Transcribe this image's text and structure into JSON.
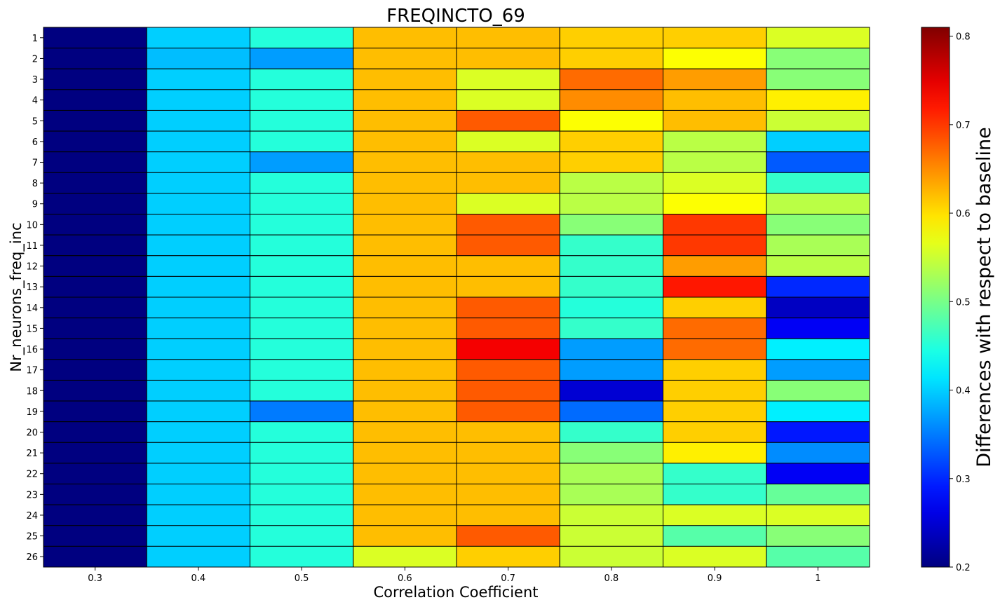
{
  "chart_data": {
    "type": "heatmap",
    "title": "FREQINCTO_69",
    "xlabel": "Correlation Coefficient",
    "ylabel": "Nr_neurons_freq_inc",
    "colorbar_label": "Differences with respect to baseline",
    "colormap": "jet",
    "vmin": 0.2,
    "vmax": 0.81,
    "colorbar_ticks": [
      "0.2",
      "0.3",
      "0.4",
      "0.5",
      "0.6",
      "0.7",
      "0.8"
    ],
    "x_categories": [
      "0.3",
      "0.4",
      "0.5",
      "0.6",
      "0.7",
      "0.8",
      "0.9",
      "1"
    ],
    "y_categories": [
      "1",
      "2",
      "3",
      "4",
      "5",
      "6",
      "7",
      "8",
      "9",
      "10",
      "11",
      "12",
      "13",
      "14",
      "15",
      "16",
      "17",
      "18",
      "19",
      "20",
      "21",
      "22",
      "23",
      "24",
      "25",
      "26"
    ],
    "values": [
      [
        0.2,
        0.4,
        0.45,
        0.62,
        0.62,
        0.61,
        0.61,
        0.56
      ],
      [
        0.2,
        0.39,
        0.37,
        0.62,
        0.62,
        0.61,
        0.58,
        0.51
      ],
      [
        0.2,
        0.4,
        0.45,
        0.62,
        0.56,
        0.67,
        0.64,
        0.51
      ],
      [
        0.2,
        0.4,
        0.45,
        0.62,
        0.56,
        0.65,
        0.62,
        0.59
      ],
      [
        0.2,
        0.4,
        0.45,
        0.62,
        0.68,
        0.58,
        0.62,
        0.55
      ],
      [
        0.2,
        0.4,
        0.45,
        0.62,
        0.56,
        0.61,
        0.54,
        0.4
      ],
      [
        0.2,
        0.4,
        0.37,
        0.62,
        0.62,
        0.61,
        0.54,
        0.33
      ],
      [
        0.2,
        0.4,
        0.45,
        0.62,
        0.62,
        0.54,
        0.56,
        0.46
      ],
      [
        0.2,
        0.4,
        0.45,
        0.62,
        0.56,
        0.54,
        0.58,
        0.54
      ],
      [
        0.2,
        0.4,
        0.45,
        0.62,
        0.68,
        0.51,
        0.7,
        0.51
      ],
      [
        0.2,
        0.4,
        0.45,
        0.62,
        0.68,
        0.46,
        0.7,
        0.53
      ],
      [
        0.2,
        0.4,
        0.45,
        0.62,
        0.62,
        0.46,
        0.64,
        0.54
      ],
      [
        0.2,
        0.4,
        0.45,
        0.62,
        0.62,
        0.46,
        0.72,
        0.3
      ],
      [
        0.2,
        0.4,
        0.45,
        0.62,
        0.68,
        0.45,
        0.61,
        0.24
      ],
      [
        0.2,
        0.4,
        0.45,
        0.62,
        0.68,
        0.46,
        0.67,
        0.27
      ],
      [
        0.2,
        0.4,
        0.45,
        0.62,
        0.74,
        0.37,
        0.67,
        0.42
      ],
      [
        0.2,
        0.4,
        0.45,
        0.62,
        0.68,
        0.37,
        0.61,
        0.37
      ],
      [
        0.2,
        0.4,
        0.45,
        0.62,
        0.68,
        0.25,
        0.61,
        0.51
      ],
      [
        0.2,
        0.4,
        0.35,
        0.62,
        0.68,
        0.34,
        0.61,
        0.42
      ],
      [
        0.2,
        0.4,
        0.45,
        0.62,
        0.62,
        0.46,
        0.61,
        0.29
      ],
      [
        0.2,
        0.4,
        0.45,
        0.62,
        0.62,
        0.51,
        0.59,
        0.36
      ],
      [
        0.2,
        0.4,
        0.45,
        0.62,
        0.62,
        0.53,
        0.46,
        0.27
      ],
      [
        0.2,
        0.4,
        0.45,
        0.62,
        0.62,
        0.53,
        0.46,
        0.49
      ],
      [
        0.2,
        0.4,
        0.45,
        0.62,
        0.62,
        0.55,
        0.56,
        0.56
      ],
      [
        0.2,
        0.4,
        0.45,
        0.62,
        0.68,
        0.55,
        0.48,
        0.51
      ],
      [
        0.2,
        0.4,
        0.45,
        0.56,
        0.61,
        0.55,
        0.56,
        0.48
      ]
    ]
  }
}
